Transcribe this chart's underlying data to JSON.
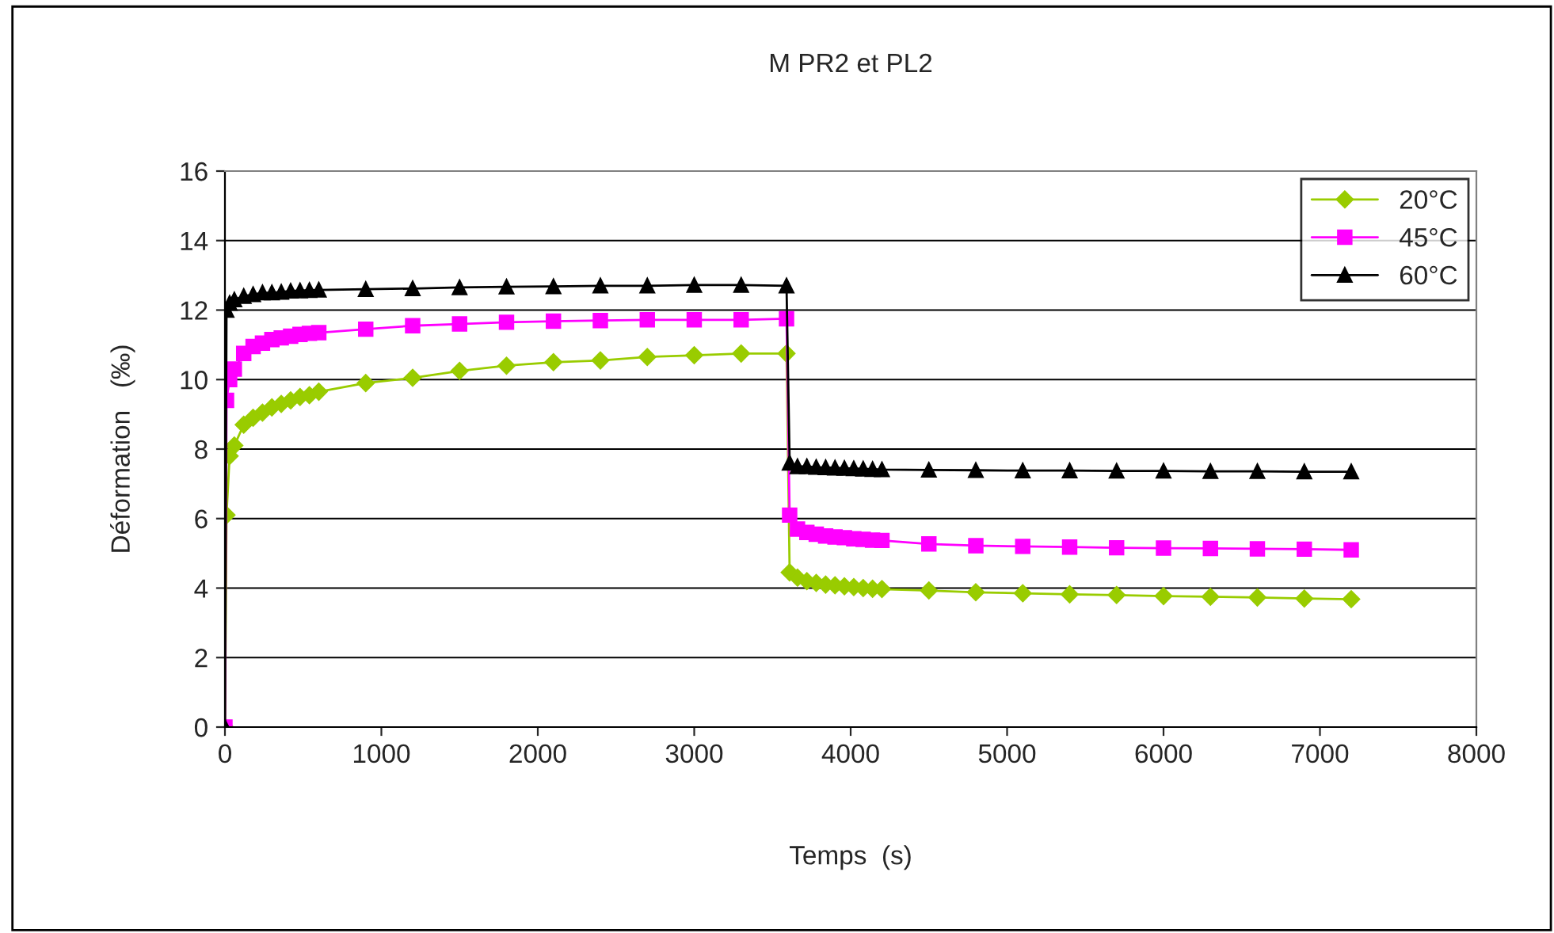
{
  "chart_data": {
    "type": "line",
    "title": "M PR2 et PL2",
    "xlabel": "Temps  (s)",
    "ylabel": "Déformation   (‰)",
    "x": [
      0,
      10,
      30,
      60,
      120,
      180,
      240,
      300,
      360,
      420,
      480,
      540,
      600,
      900,
      1200,
      1500,
      1800,
      2100,
      2400,
      2700,
      3000,
      3300,
      3590,
      3610,
      3660,
      3720,
      3780,
      3840,
      3900,
      3960,
      4020,
      4080,
      4140,
      4200,
      4500,
      4800,
      5100,
      5400,
      5700,
      6000,
      6300,
      6600,
      6900,
      7200
    ],
    "series": [
      {
        "name": "20°C",
        "color": "#99cc00",
        "marker": "diamond",
        "values": [
          0,
          6.1,
          7.8,
          8.1,
          8.7,
          8.9,
          9.05,
          9.2,
          9.3,
          9.4,
          9.5,
          9.55,
          9.65,
          9.9,
          10.05,
          10.25,
          10.4,
          10.5,
          10.55,
          10.65,
          10.7,
          10.75,
          10.75,
          4.45,
          4.3,
          4.2,
          4.15,
          4.1,
          4.08,
          4.05,
          4.03,
          4.0,
          3.98,
          3.97,
          3.93,
          3.88,
          3.85,
          3.82,
          3.8,
          3.77,
          3.75,
          3.73,
          3.7,
          3.68
        ]
      },
      {
        "name": "45°C",
        "color": "#ff00ff",
        "marker": "square",
        "values": [
          0,
          9.4,
          10.0,
          10.3,
          10.75,
          10.95,
          11.05,
          11.15,
          11.2,
          11.25,
          11.3,
          11.33,
          11.35,
          11.45,
          11.55,
          11.6,
          11.65,
          11.68,
          11.7,
          11.72,
          11.72,
          11.72,
          11.75,
          6.1,
          5.7,
          5.6,
          5.55,
          5.5,
          5.47,
          5.45,
          5.42,
          5.4,
          5.38,
          5.37,
          5.27,
          5.22,
          5.2,
          5.18,
          5.16,
          5.15,
          5.14,
          5.13,
          5.12,
          5.1
        ]
      },
      {
        "name": "60°C",
        "color": "#000000",
        "marker": "triangle",
        "values": [
          0,
          12.0,
          12.2,
          12.3,
          12.4,
          12.45,
          12.5,
          12.5,
          12.52,
          12.55,
          12.56,
          12.57,
          12.58,
          12.6,
          12.62,
          12.65,
          12.67,
          12.68,
          12.7,
          12.7,
          12.72,
          12.72,
          12.7,
          7.6,
          7.5,
          7.5,
          7.48,
          7.47,
          7.46,
          7.45,
          7.44,
          7.43,
          7.42,
          7.41,
          7.4,
          7.39,
          7.38,
          7.38,
          7.37,
          7.37,
          7.36,
          7.36,
          7.35,
          7.35
        ]
      }
    ],
    "xlim": [
      0,
      8000
    ],
    "xticks": [
      0,
      1000,
      2000,
      3000,
      4000,
      5000,
      6000,
      7000,
      8000
    ],
    "ylim": [
      0,
      16
    ],
    "yticks": [
      0,
      2,
      4,
      6,
      8,
      10,
      12,
      14,
      16
    ],
    "grid": "y",
    "legend": "top right",
    "line_style": "solid"
  }
}
